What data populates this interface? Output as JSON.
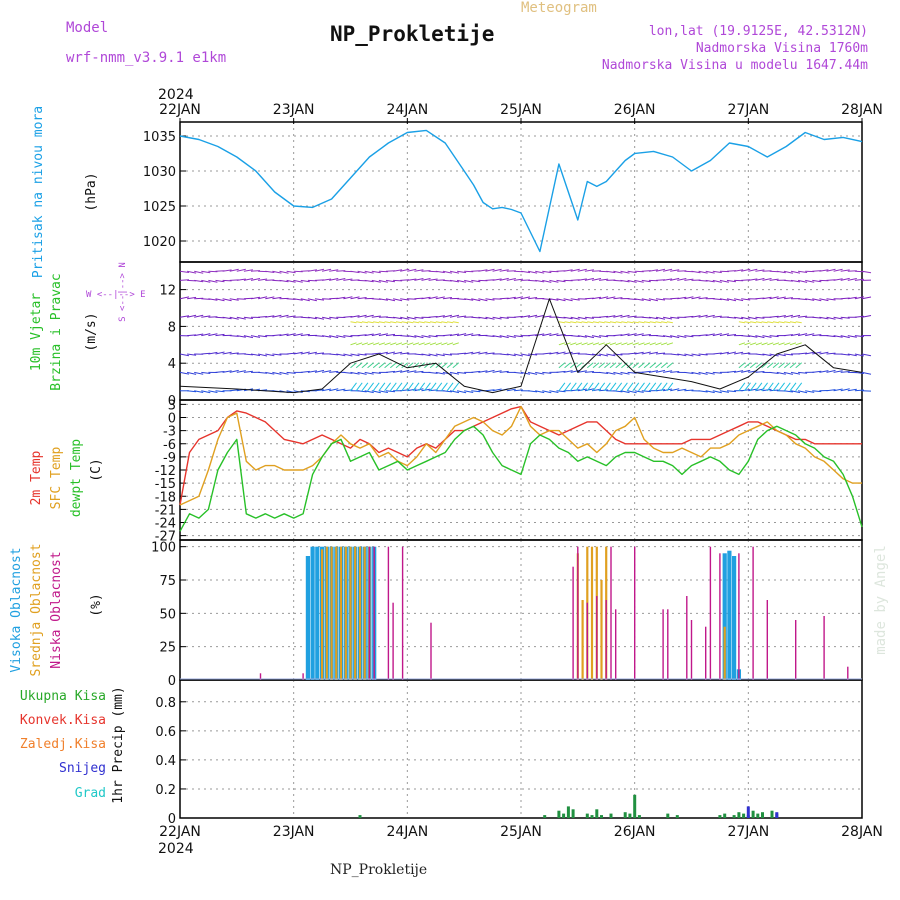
{
  "header": {
    "model_label": "Model",
    "model_value": "wrf-nmm_v3.9.1 e1km",
    "meteogram": "Meteogram",
    "title": "NP_Prokletije",
    "lonlat": "lon,lat (19.9125E, 42.5312N)",
    "elev": "Nadmorska Visina 1760m",
    "elev_model": "Nadmorska Visina u modelu 1647.44m"
  },
  "footer": {
    "station": "NP_Prokletije",
    "credit": "made by Angel"
  },
  "axis_x": {
    "year": "2024",
    "labels": [
      "22JAN",
      "23JAN",
      "24JAN",
      "25JAN",
      "26JAN",
      "27JAN",
      "28JAN"
    ]
  },
  "colors": {
    "pressure": "#1aa0e6",
    "temp2m": "#e6342c",
    "sfc": "#e0a020",
    "dew": "#28c028",
    "high": "#20a0e0",
    "mid": "#e0a020",
    "low": "#c0188a",
    "wind": "#8020c0"
  },
  "panels": {
    "pressure": {
      "ylabel": "(hPa)",
      "name": "Pritisak na nivou mora",
      "ticks": [
        "1035",
        "1030",
        "1025",
        "1020"
      ]
    },
    "wind": {
      "ylabel": "(m/s)",
      "name1": "10m Vjetar",
      "name2": "Brzina i Pravac",
      "ticks": [
        "12",
        "8",
        "4",
        "0"
      ],
      "compass": "W <--|--> E",
      "compass_v": "S <--|--> N"
    },
    "temp": {
      "ylabel": "(C)",
      "name1": "2m Temp",
      "name2": "SFC Temp",
      "name3": "dewpt Temp",
      "ticks": [
        "3",
        "0",
        "-3",
        "-6",
        "-9",
        "-12",
        "-15",
        "-18",
        "-21",
        "-24",
        "-27"
      ]
    },
    "cloud": {
      "ylabel": "(%)",
      "name1": "Visoka Oblacnost",
      "name2": "Srednja Oblacnost",
      "name3": "Niska Oblacnost",
      "ticks": [
        "100",
        "75",
        "50",
        "25",
        "0"
      ]
    },
    "precip": {
      "ylabel": "1hr Precip (mm)",
      "legend": [
        "Ukupna Kisa",
        "Konvek.Kisa",
        "Zaledj.Kisa",
        "Snijeg",
        "Grad"
      ],
      "ticks": [
        "0.8",
        "0.6",
        "0.4",
        "0.2",
        "0"
      ]
    }
  },
  "chart_data": [
    {
      "type": "line",
      "title": "Pritisak na nivou mora",
      "ylabel": "(hPa)",
      "ylim": [
        1017,
        1037
      ],
      "x_hours": [
        0,
        4,
        8,
        12,
        16,
        20,
        24,
        28,
        32,
        36,
        40,
        44,
        48,
        52,
        56,
        60,
        62,
        64,
        66,
        68,
        70,
        72,
        76,
        80,
        84,
        86,
        88,
        90,
        92,
        94,
        96,
        100,
        104,
        108,
        112,
        116,
        120,
        124,
        128,
        132,
        136,
        140,
        144
      ],
      "series": [
        {
          "name": "Pritisak",
          "values": [
            1035,
            1034.5,
            1033.5,
            1032,
            1030,
            1027,
            1025,
            1024.8,
            1026,
            1029,
            1032,
            1034,
            1035.5,
            1035.8,
            1034,
            1030,
            1028,
            1025.5,
            1024.6,
            1024.8,
            1024.5,
            1024,
            1018.5,
            1031,
            1023,
            1028.5,
            1027.8,
            1028.5,
            1030,
            1031.5,
            1032.5,
            1032.8,
            1032,
            1030,
            1031.5,
            1034,
            1033.5,
            1032,
            1033.5,
            1035.5,
            1034.5,
            1034.8,
            1034.2
          ]
        }
      ]
    },
    {
      "type": "line",
      "title": "10m Vjetar",
      "ylabel": "(m/s)",
      "ylim": [
        0,
        15
      ],
      "x_hours": [
        0,
        12,
        24,
        30,
        36,
        42,
        48,
        54,
        60,
        66,
        72,
        78,
        84,
        90,
        96,
        102,
        108,
        114,
        120,
        126,
        132,
        138,
        144
      ],
      "series": [
        {
          "name": "Brzina",
          "values": [
            1.5,
            1.2,
            0.8,
            1.2,
            4,
            5,
            3.5,
            4,
            1.5,
            0.8,
            1.5,
            11,
            3,
            6,
            3,
            2.5,
            2,
            1.2,
            2.5,
            5,
            6,
            3.5,
            3
          ]
        }
      ]
    },
    {
      "type": "line",
      "title": "Temp",
      "ylabel": "(C)",
      "ylim": [
        -28,
        4
      ],
      "x_hours": [
        0,
        2,
        4,
        6,
        8,
        10,
        12,
        14,
        16,
        18,
        20,
        22,
        24,
        26,
        28,
        30,
        32,
        34,
        36,
        38,
        40,
        42,
        44,
        46,
        48,
        50,
        52,
        54,
        56,
        58,
        60,
        62,
        64,
        66,
        68,
        70,
        72,
        74,
        76,
        78,
        80,
        82,
        84,
        86,
        88,
        90,
        92,
        94,
        96,
        98,
        100,
        102,
        104,
        106,
        108,
        110,
        112,
        114,
        116,
        118,
        120,
        122,
        124,
        126,
        128,
        130,
        132,
        134,
        136,
        138,
        140,
        142,
        144
      ],
      "series": [
        {
          "name": "2m Temp",
          "values": [
            -20,
            -8,
            -5,
            -4,
            -3,
            0,
            1.5,
            1,
            0,
            -1,
            -3,
            -5,
            -5.5,
            -6,
            -5,
            -4,
            -5,
            -6,
            -7,
            -5,
            -6,
            -8,
            -7,
            -8,
            -9,
            -7,
            -6,
            -7,
            -5,
            -3,
            -3,
            -2,
            -1,
            0,
            1,
            2,
            2.5,
            -1,
            -2,
            -3,
            -4,
            -3,
            -2,
            -1,
            -1,
            -3,
            -5,
            -6,
            -6,
            -6,
            -6,
            -6,
            -6,
            -6,
            -5,
            -5,
            -5,
            -4,
            -3,
            -2,
            -1,
            -1,
            -2,
            -3,
            -4,
            -5,
            -5,
            -6,
            -6,
            -6,
            -6,
            -6,
            -6
          ]
        },
        {
          "name": "SFC Temp",
          "values": [
            -20,
            -19,
            -18,
            -12,
            -5,
            0,
            1,
            -10,
            -12,
            -11,
            -11,
            -12,
            -12,
            -12,
            -11,
            -9,
            -6,
            -4,
            -6,
            -7,
            -6,
            -9,
            -8,
            -10,
            -11,
            -9,
            -6,
            -8,
            -5,
            -2,
            -1,
            0,
            -1,
            -3,
            -4,
            -2,
            2.5,
            -2,
            -4,
            -3,
            -3,
            -5,
            -7,
            -6,
            -8,
            -6,
            -3,
            -2,
            0,
            -5,
            -7,
            -8,
            -8,
            -7,
            -8,
            -9,
            -7,
            -7,
            -6,
            -4,
            -3,
            -2,
            -1,
            -3,
            -4,
            -6,
            -7,
            -9,
            -10,
            -12,
            -14,
            -15,
            -15
          ]
        },
        {
          "name": "dewpt Temp",
          "values": [
            -26,
            -22,
            -23,
            -21,
            -12,
            -8,
            -5,
            -22,
            -23,
            -22,
            -23,
            -22,
            -23,
            -22,
            -13,
            -9,
            -6,
            -5,
            -10,
            -9,
            -8,
            -12,
            -11,
            -10,
            -12,
            -11,
            -10,
            -9,
            -8,
            -5,
            -3,
            -2,
            -4,
            -8,
            -11,
            -12,
            -13,
            -6,
            -4,
            -5,
            -7,
            -8,
            -10,
            -9,
            -10,
            -11,
            -9,
            -8,
            -8,
            -9,
            -10,
            -10,
            -11,
            -13,
            -11,
            -10,
            -9,
            -10,
            -12,
            -13,
            -10,
            -5,
            -3,
            -2,
            -3,
            -4,
            -6,
            -7,
            -9,
            -10,
            -13,
            -18,
            -25
          ]
        }
      ]
    },
    {
      "type": "bar",
      "title": "Oblacnost",
      "ylabel": "(%)",
      "ylim": [
        0,
        100
      ],
      "series": [
        {
          "name": "Visoka Oblacnost",
          "x_hours": [
            27,
            28,
            29,
            30,
            31,
            32,
            33,
            34,
            35,
            36,
            37,
            38,
            39,
            40,
            41,
            115,
            116,
            117,
            118
          ],
          "values": [
            93,
            100,
            100,
            100,
            100,
            100,
            100,
            100,
            100,
            100,
            100,
            100,
            100,
            100,
            100,
            95,
            97,
            93,
            8
          ]
        },
        {
          "name": "Srednja Oblacnost",
          "x_hours": [
            30,
            31,
            32,
            33,
            34,
            35,
            36,
            37,
            38,
            39,
            40,
            84,
            85,
            86,
            87,
            88,
            89,
            90,
            115
          ],
          "values": [
            98,
            100,
            100,
            100,
            100,
            100,
            100,
            100,
            100,
            100,
            100,
            95,
            60,
            100,
            100,
            100,
            75,
            100,
            40
          ]
        },
        {
          "name": "Niska Oblacnost",
          "x_hours": [
            17,
            26,
            40,
            41,
            44,
            45,
            47,
            53,
            83,
            86,
            88,
            90,
            92,
            84,
            91,
            96,
            102,
            103,
            107,
            108,
            111,
            112,
            114,
            118,
            121,
            124,
            130,
            136,
            141
          ],
          "values": [
            5,
            5,
            100,
            100,
            100,
            58,
            100,
            43,
            85,
            58,
            63,
            60,
            53,
            100,
            100,
            100,
            53,
            53,
            63,
            45,
            40,
            100,
            95,
            95,
            100,
            60,
            45,
            48,
            10
          ]
        }
      ]
    },
    {
      "type": "bar",
      "title": "1hr Precip",
      "ylabel": "1hr Precip (mm)",
      "ylim": [
        0,
        0.95
      ],
      "series": [
        {
          "name": "Ukupna Kisa",
          "x_hours": [
            38,
            77,
            80,
            81,
            82,
            83,
            86,
            87,
            88,
            89,
            91,
            94,
            95,
            96,
            97,
            103,
            105,
            114,
            115,
            117,
            118,
            119,
            120,
            121,
            122,
            123,
            125,
            126
          ],
          "values": [
            0.02,
            0.02,
            0.05,
            0.03,
            0.08,
            0.06,
            0.03,
            0.02,
            0.06,
            0.02,
            0.03,
            0.04,
            0.03,
            0.16,
            0.02,
            0.03,
            0.02,
            0.02,
            0.03,
            0.02,
            0.04,
            0.03,
            0.02,
            0.05,
            0.03,
            0.04,
            0.05,
            0.03
          ]
        },
        {
          "name": "Snijeg",
          "x_hours": [
            120,
            126
          ],
          "values": [
            0.08,
            0.04
          ]
        }
      ]
    }
  ]
}
